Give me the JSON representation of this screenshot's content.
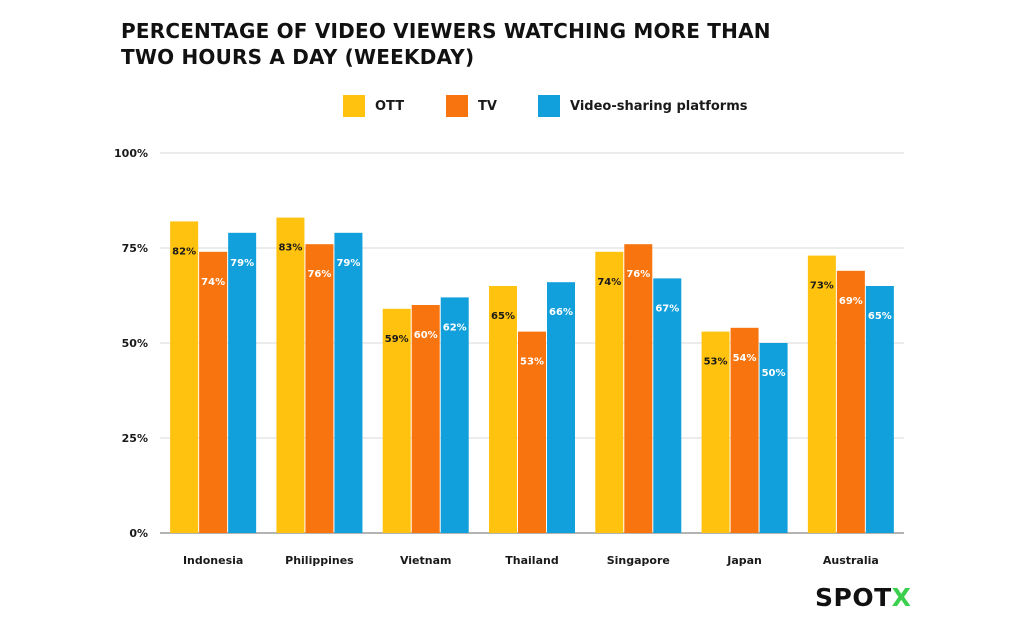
{
  "title_line1": "PERCENTAGE OF VIDEO VIEWERS WATCHING MORE THAN",
  "title_line2": "TWO HOURS A DAY (WEEKDAY)",
  "logo_main": "SPOT",
  "logo_accent": "X",
  "colors": {
    "ott": "#FFC20E",
    "tv": "#F7740F",
    "vsp": "#11A0DB",
    "grid": "#d9d9d9",
    "axis": "#9a9a9a",
    "logo_accent": "#3ccf4e"
  },
  "chart_data": {
    "type": "bar",
    "title": "PERCENTAGE OF VIDEO VIEWERS WATCHING MORE THAN TWO HOURS A DAY (WEEKDAY)",
    "categories": [
      "Indonesia",
      "Philippines",
      "Vietnam",
      "Thailand",
      "Singapore",
      "Japan",
      "Australia"
    ],
    "series": [
      {
        "name": "OTT",
        "values": [
          82,
          83,
          59,
          65,
          74,
          53,
          73
        ],
        "labels": [
          "82%",
          "83%",
          "59%",
          "65%",
          "74%",
          "53%",
          "73%"
        ]
      },
      {
        "name": "TV",
        "values": [
          74,
          76,
          60,
          53,
          76,
          54,
          69
        ],
        "labels": [
          "74%",
          "76%",
          "60%",
          "53%",
          "76%",
          "54%",
          "69%"
        ]
      },
      {
        "name": "Video-sharing platforms",
        "values": [
          79,
          79,
          62,
          66,
          67,
          50,
          65
        ],
        "labels": [
          "79%",
          "79%",
          "62%",
          "66%",
          "67%",
          "50%",
          "65%"
        ]
      }
    ],
    "ylim": [
      0,
      100
    ],
    "yticks": [
      0,
      25,
      50,
      75,
      100
    ],
    "ytick_labels": [
      "0%",
      "25%",
      "50%",
      "75%",
      "100%"
    ],
    "grid": true,
    "legend_position": "top-center"
  }
}
